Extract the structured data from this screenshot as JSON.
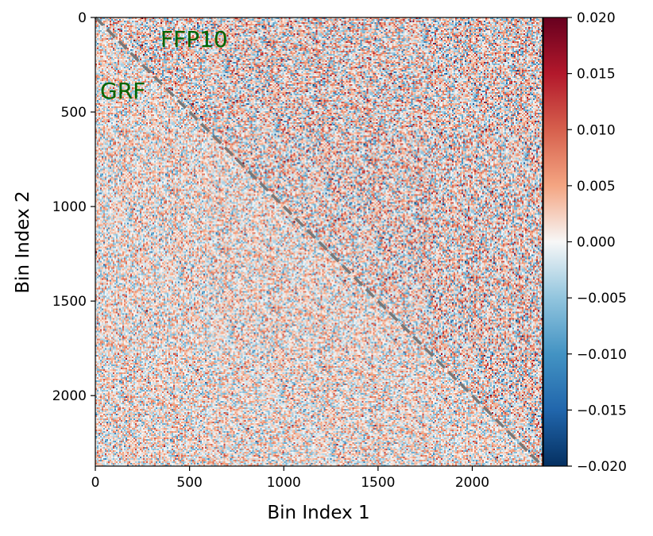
{
  "chart_data": {
    "type": "heatmap",
    "title": "",
    "xlabel": "Bin Index 1",
    "ylabel": "Bin Index 2",
    "xlim": [
      0,
      2373
    ],
    "ylim": [
      2373,
      0
    ],
    "x_ticks": [
      "0",
      "500",
      "1000",
      "1500",
      "2000"
    ],
    "x_tick_values": [
      0,
      500,
      1000,
      1500,
      2000
    ],
    "y_ticks": [
      "0",
      "500",
      "1000",
      "1500",
      "2000"
    ],
    "y_tick_values": [
      0,
      500,
      1000,
      1500,
      2000
    ],
    "colormap": "RdBu_r",
    "color_range": [
      -0.02,
      0.02
    ],
    "colorbar_ticks": [
      "0.020",
      "0.015",
      "0.010",
      "0.005",
      "0.000",
      "−0.005",
      "−0.010",
      "−0.015",
      "−0.020"
    ],
    "colorbar_tick_values": [
      0.02,
      0.015,
      0.01,
      0.005,
      0.0,
      -0.005,
      -0.01,
      -0.015,
      -0.02
    ],
    "diagonal": {
      "style": "dashed",
      "color": "#777777",
      "from": [
        0,
        0
      ],
      "to": [
        2373,
        2373
      ]
    },
    "regions": [
      {
        "label": "FFP10",
        "where": "upper triangle",
        "typical_abs_value": 0.006,
        "color": "#006400"
      },
      {
        "label": "GRF",
        "where": "lower triangle",
        "typical_abs_value": 0.0045,
        "color": "#006400"
      }
    ]
  }
}
